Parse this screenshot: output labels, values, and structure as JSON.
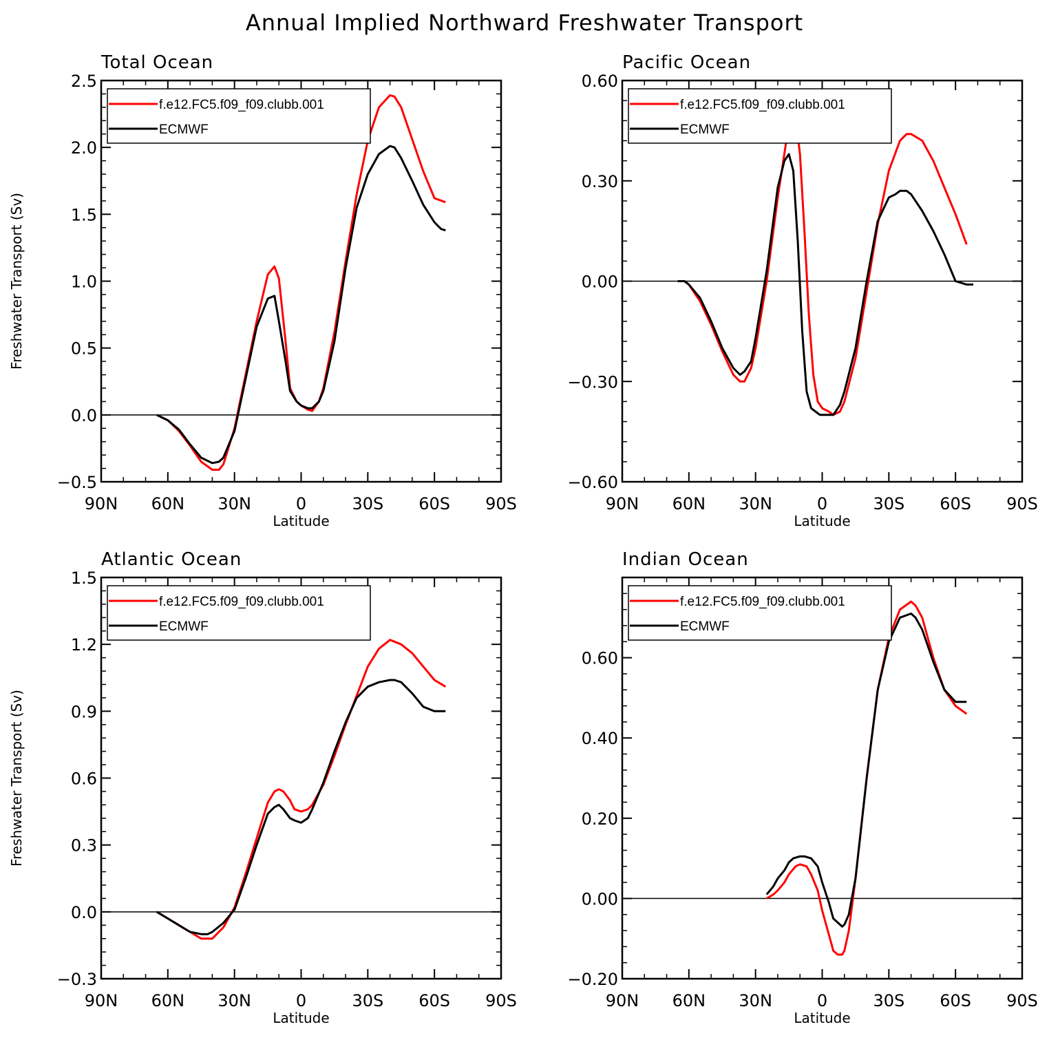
{
  "title": "Annual Implied Northward Freshwater Transport",
  "chart_data": [
    {
      "type": "line",
      "title": "Total Ocean",
      "xlabel": "Latitude",
      "ylabel": "Freshwater Transport (Sv)",
      "xlim": [
        90,
        -90
      ],
      "ylim": [
        -0.5,
        2.5
      ],
      "xticks": [
        90,
        60,
        30,
        0,
        -30,
        -60,
        -90
      ],
      "xtick_labels": [
        "90N",
        "60N",
        "30N",
        "0",
        "30S",
        "60S",
        "90S"
      ],
      "yticks": [
        -0.5,
        0.0,
        0.5,
        1.0,
        1.5,
        2.0,
        2.5
      ],
      "ytick_labels": [
        "−0.5",
        "0.0",
        "0.5",
        "1.0",
        "1.5",
        "2.0",
        "2.5"
      ],
      "zero_line": true,
      "legend": "top-left",
      "series": [
        {
          "name": "f.e12.FC5.f09_f09.clubb.001",
          "color": "#ff0000",
          "x": [
            65,
            60,
            55,
            50,
            45,
            40,
            37,
            35,
            30,
            25,
            20,
            15,
            12,
            10,
            7,
            5,
            2,
            0,
            -3,
            -5,
            -8,
            -10,
            -15,
            -20,
            -25,
            -30,
            -35,
            -40,
            -42,
            -45,
            -50,
            -55,
            -60,
            -65
          ],
          "y": [
            0.0,
            -0.04,
            -0.12,
            -0.23,
            -0.35,
            -0.41,
            -0.41,
            -0.37,
            -0.1,
            0.3,
            0.7,
            1.05,
            1.11,
            1.02,
            0.55,
            0.2,
            0.1,
            0.07,
            0.04,
            0.03,
            0.1,
            0.2,
            0.62,
            1.15,
            1.65,
            2.05,
            2.3,
            2.39,
            2.38,
            2.3,
            2.06,
            1.82,
            1.62,
            1.59
          ]
        },
        {
          "name": "ECMWF",
          "color": "#000000",
          "x": [
            65,
            60,
            55,
            50,
            45,
            40,
            37,
            35,
            30,
            25,
            20,
            15,
            12,
            10,
            7,
            5,
            2,
            0,
            -3,
            -5,
            -8,
            -10,
            -15,
            -20,
            -25,
            -30,
            -35,
            -40,
            -42,
            -45,
            -50,
            -55,
            -60,
            -63,
            -65
          ],
          "y": [
            0.0,
            -0.04,
            -0.11,
            -0.22,
            -0.32,
            -0.36,
            -0.35,
            -0.32,
            -0.12,
            0.27,
            0.66,
            0.87,
            0.89,
            0.7,
            0.4,
            0.18,
            0.1,
            0.07,
            0.05,
            0.05,
            0.1,
            0.18,
            0.55,
            1.1,
            1.55,
            1.8,
            1.95,
            2.01,
            2.0,
            1.92,
            1.75,
            1.57,
            1.44,
            1.39,
            1.38
          ]
        }
      ]
    },
    {
      "type": "line",
      "title": "Pacific Ocean",
      "xlabel": "Latitude",
      "ylabel": "",
      "xlim": [
        90,
        -90
      ],
      "ylim": [
        -0.6,
        0.6
      ],
      "xticks": [
        90,
        60,
        30,
        0,
        -30,
        -60,
        -90
      ],
      "xtick_labels": [
        "90N",
        "60N",
        "30N",
        "0",
        "30S",
        "60S",
        "90S"
      ],
      "yticks": [
        -0.6,
        -0.3,
        0.0,
        0.3,
        0.6
      ],
      "ytick_labels": [
        "−0.60",
        "−0.30",
        "0.00",
        "0.30",
        "0.60"
      ],
      "zero_line": true,
      "legend": "top-left",
      "series": [
        {
          "name": "f.e12.FC5.f09_f09.clubb.001",
          "color": "#ff0000",
          "x": [
            65,
            62,
            60,
            55,
            50,
            45,
            40,
            37,
            35,
            32,
            30,
            25,
            20,
            15,
            13,
            12,
            10,
            8,
            6,
            4,
            2,
            0,
            -3,
            -5,
            -8,
            -10,
            -15,
            -20,
            -25,
            -30,
            -35,
            -38,
            -40,
            -45,
            -50,
            -55,
            -60,
            -65
          ],
          "y": [
            0.0,
            0.0,
            -0.01,
            -0.06,
            -0.13,
            -0.21,
            -0.28,
            -0.3,
            -0.3,
            -0.26,
            -0.2,
            0.0,
            0.25,
            0.47,
            0.5,
            0.49,
            0.38,
            0.15,
            -0.1,
            -0.28,
            -0.36,
            -0.38,
            -0.39,
            -0.4,
            -0.39,
            -0.36,
            -0.23,
            -0.03,
            0.17,
            0.33,
            0.42,
            0.44,
            0.44,
            0.42,
            0.36,
            0.28,
            0.2,
            0.11
          ]
        },
        {
          "name": "ECMWF",
          "color": "#000000",
          "x": [
            65,
            62,
            60,
            55,
            50,
            45,
            40,
            37,
            35,
            32,
            30,
            25,
            20,
            17,
            15,
            13,
            11,
            9,
            7,
            5,
            3,
            1,
            0,
            -3,
            -5,
            -8,
            -10,
            -15,
            -20,
            -25,
            -30,
            -33,
            -35,
            -38,
            -40,
            -45,
            -50,
            -55,
            -60,
            -65,
            -68
          ],
          "y": [
            0.0,
            0.0,
            -0.01,
            -0.05,
            -0.12,
            -0.2,
            -0.26,
            -0.28,
            -0.27,
            -0.24,
            -0.17,
            0.03,
            0.28,
            0.36,
            0.38,
            0.33,
            0.12,
            -0.15,
            -0.33,
            -0.38,
            -0.39,
            -0.4,
            -0.4,
            -0.4,
            -0.4,
            -0.37,
            -0.33,
            -0.2,
            0.0,
            0.18,
            0.25,
            0.26,
            0.27,
            0.27,
            0.26,
            0.21,
            0.15,
            0.08,
            0.0,
            -0.01,
            -0.01
          ]
        }
      ]
    },
    {
      "type": "line",
      "title": "Atlantic Ocean",
      "xlabel": "Latitude",
      "ylabel": "Freshwater Transport (Sv)",
      "xlim": [
        90,
        -90
      ],
      "ylim": [
        -0.3,
        1.5
      ],
      "xticks": [
        90,
        60,
        30,
        0,
        -30,
        -60,
        -90
      ],
      "xtick_labels": [
        "90N",
        "60N",
        "30N",
        "0",
        "30S",
        "60S",
        "90S"
      ],
      "yticks": [
        -0.3,
        0.0,
        0.3,
        0.6,
        0.9,
        1.2,
        1.5
      ],
      "ytick_labels": [
        "−0.3",
        "0.0",
        "0.3",
        "0.6",
        "0.9",
        "1.2",
        "1.5"
      ],
      "zero_line": true,
      "legend": "top-left",
      "series": [
        {
          "name": "f.e12.FC5.f09_f09.clubb.001",
          "color": "#ff0000",
          "x": [
            65,
            60,
            55,
            50,
            45,
            40,
            35,
            30,
            25,
            20,
            15,
            12,
            10,
            8,
            5,
            3,
            0,
            -3,
            -5,
            -10,
            -15,
            -20,
            -25,
            -30,
            -35,
            -40,
            -45,
            -50,
            -55,
            -60,
            -65
          ],
          "y": [
            0.0,
            -0.03,
            -0.06,
            -0.09,
            -0.12,
            -0.12,
            -0.07,
            0.02,
            0.17,
            0.33,
            0.49,
            0.54,
            0.55,
            0.54,
            0.5,
            0.46,
            0.45,
            0.46,
            0.48,
            0.57,
            0.7,
            0.84,
            0.97,
            1.1,
            1.18,
            1.22,
            1.2,
            1.16,
            1.1,
            1.04,
            1.01
          ]
        },
        {
          "name": "ECMWF",
          "color": "#000000",
          "x": [
            65,
            60,
            55,
            50,
            45,
            42,
            40,
            35,
            30,
            25,
            20,
            15,
            12,
            10,
            8,
            5,
            3,
            0,
            -3,
            -5,
            -10,
            -15,
            -20,
            -25,
            -30,
            -35,
            -40,
            -42,
            -45,
            -50,
            -55,
            -60,
            -65
          ],
          "y": [
            0.0,
            -0.03,
            -0.06,
            -0.09,
            -0.1,
            -0.1,
            -0.09,
            -0.05,
            0.01,
            0.15,
            0.3,
            0.44,
            0.47,
            0.48,
            0.46,
            0.42,
            0.41,
            0.4,
            0.42,
            0.46,
            0.58,
            0.72,
            0.85,
            0.96,
            1.01,
            1.03,
            1.04,
            1.04,
            1.03,
            0.98,
            0.92,
            0.9,
            0.9
          ]
        }
      ]
    },
    {
      "type": "line",
      "title": "Indian Ocean",
      "xlabel": "Latitude",
      "ylabel": "",
      "xlim": [
        90,
        -90
      ],
      "ylim": [
        -0.2,
        0.8
      ],
      "xticks": [
        90,
        60,
        30,
        0,
        -30,
        -60,
        -90
      ],
      "xtick_labels": [
        "90N",
        "60N",
        "30N",
        "0",
        "30S",
        "60S",
        "90S"
      ],
      "yticks": [
        -0.2,
        0.0,
        0.2,
        0.4,
        0.6
      ],
      "ytick_labels": [
        "−0.20",
        "0.00",
        "0.20",
        "0.40",
        "0.60"
      ],
      "zero_line": true,
      "legend": "top-left",
      "series": [
        {
          "name": "f.e12.FC5.f09_f09.clubb.001",
          "color": "#ff0000",
          "x": [
            25,
            22,
            20,
            17,
            15,
            12,
            10,
            7,
            5,
            2,
            0,
            -3,
            -5,
            -7,
            -9,
            -10,
            -12,
            -15,
            -20,
            -25,
            -30,
            -35,
            -40,
            -42,
            -45,
            -50,
            -55,
            -60,
            -65
          ],
          "y": [
            0.0,
            0.01,
            0.02,
            0.04,
            0.06,
            0.08,
            0.085,
            0.08,
            0.06,
            0.02,
            -0.03,
            -0.09,
            -0.13,
            -0.14,
            -0.14,
            -0.13,
            -0.08,
            0.05,
            0.3,
            0.52,
            0.65,
            0.72,
            0.74,
            0.73,
            0.7,
            0.6,
            0.52,
            0.48,
            0.46
          ]
        },
        {
          "name": "ECMWF",
          "color": "#000000",
          "x": [
            25,
            22,
            20,
            17,
            15,
            13,
            10,
            8,
            5,
            2,
            0,
            -3,
            -5,
            -7,
            -9,
            -10,
            -12,
            -15,
            -20,
            -25,
            -30,
            -35,
            -40,
            -42,
            -45,
            -50,
            -55,
            -60,
            -65
          ],
          "y": [
            0.01,
            0.03,
            0.05,
            0.07,
            0.09,
            0.1,
            0.105,
            0.105,
            0.1,
            0.08,
            0.04,
            -0.01,
            -0.05,
            -0.06,
            -0.07,
            -0.065,
            -0.04,
            0.05,
            0.3,
            0.52,
            0.64,
            0.7,
            0.71,
            0.7,
            0.67,
            0.59,
            0.52,
            0.49,
            0.49
          ]
        }
      ]
    }
  ]
}
